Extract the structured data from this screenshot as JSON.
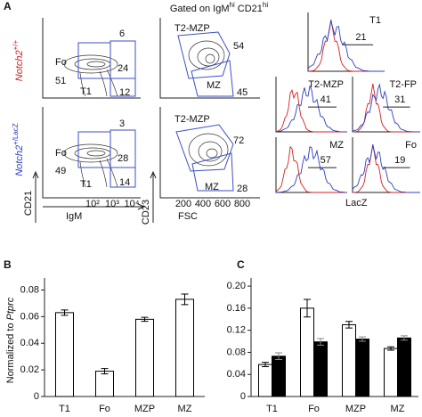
{
  "panel_a": {
    "label": "A",
    "gate_label": [
      "Gated on IgM",
      "hi",
      " CD21",
      "hi"
    ],
    "genotypes": [
      {
        "gene": "Notch2",
        "allele": "+/+"
      },
      {
        "gene": "Notch2",
        "allele": "+/LacZ"
      }
    ],
    "axes": {
      "cd21": "CD21",
      "igm": "IgM",
      "cd23": "CD23",
      "fsc": "FSC",
      "lacz": "LacZ"
    },
    "igm_ticks": [
      "10²",
      "10³",
      "10⁴"
    ],
    "fsc_ticks": [
      "200",
      "400",
      "600",
      "800"
    ],
    "gates": [
      {
        "hi": "6",
        "fo": "Fo",
        "fo_pct": "51",
        "mid": "24",
        "t1": "T1",
        "low": "12"
      },
      {
        "hi": "3",
        "fo": "Fo",
        "fo_pct": "49",
        "mid": "28",
        "t1": "T1",
        "low": "14"
      }
    ],
    "zonal": [
      {
        "top": "T2-MZP",
        "top_pct": "54",
        "bottom": "MZ",
        "bottom_pct": "45"
      },
      {
        "top": "T2-MZP",
        "top_pct": "72",
        "bottom": "MZ",
        "bottom_pct": "28"
      }
    ],
    "histograms": [
      {
        "label": "T1",
        "pct": "21"
      },
      {
        "label": "T2-MZP",
        "pct": "41"
      },
      {
        "label": "T2-FP",
        "pct": "31"
      },
      {
        "label": "MZ",
        "pct": "57"
      },
      {
        "label": "Fo",
        "pct": "19"
      }
    ]
  },
  "chart_data": [
    {
      "type": "bar",
      "label": "B",
      "ylabel": [
        "Normalized to ",
        "Ptprc"
      ],
      "categories": [
        "T1",
        "Fo",
        "MZP",
        "MZ"
      ],
      "values": [
        0.063,
        0.019,
        0.058,
        0.073
      ],
      "errors": [
        0.002,
        0.002,
        0.0015,
        0.004
      ],
      "color": "#ffffff",
      "ylim": [
        0,
        0.085
      ],
      "yticks": [
        0,
        0.02,
        0.04,
        0.06,
        0.08
      ]
    },
    {
      "type": "grouped_bar",
      "label": "C",
      "categories": [
        "T1",
        "Fo",
        "MZP",
        "MZ"
      ],
      "series": [
        {
          "color": "#ffffff",
          "values": [
            0.058,
            0.16,
            0.13,
            0.087
          ],
          "errors": [
            0.004,
            0.016,
            0.006,
            0.003
          ]
        },
        {
          "color": "#000000",
          "values": [
            0.073,
            0.099,
            0.104,
            0.106
          ],
          "errors": [
            0.006,
            0.006,
            0.004,
            0.004
          ]
        }
      ],
      "ylim": [
        0,
        0.205
      ],
      "yticks": [
        0,
        0.04,
        0.08,
        0.12,
        0.16,
        {
          "value": 0.2,
          "label": "0.20"
        }
      ]
    }
  ]
}
